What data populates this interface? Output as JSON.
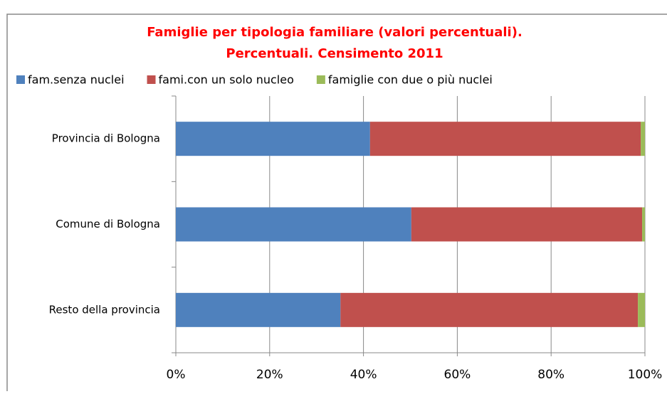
{
  "chart_data": {
    "type": "stacked_bar_horizontal",
    "title": [
      "Famiglie per tipologia familiare (valori percentuali).",
      "Percentuali. Censimento 2011"
    ],
    "categories": [
      "Provincia di Bologna",
      "Comune di Bologna",
      "Resto della provincia"
    ],
    "series": [
      {
        "name": "fam.senza nuclei",
        "color": "#4f81bd",
        "values": [
          41.4,
          50.2,
          35.1
        ]
      },
      {
        "name": "fami.con un solo nucleo",
        "color": "#c0504d",
        "values": [
          57.7,
          49.2,
          63.4
        ]
      },
      {
        "name": "famiglie con due o più nuclei",
        "color": "#9bbb59",
        "values": [
          0.9,
          0.6,
          1.5
        ]
      }
    ],
    "xlim": [
      0,
      100
    ],
    "xticks": [
      {
        "value": 0,
        "label": "0%"
      },
      {
        "value": 20,
        "label": "20%"
      },
      {
        "value": 40,
        "label": "40%"
      },
      {
        "value": 60,
        "label": "60%"
      },
      {
        "value": 80,
        "label": "80%"
      },
      {
        "value": 100,
        "label": "100%"
      }
    ],
    "grid": true,
    "legend": "top"
  }
}
